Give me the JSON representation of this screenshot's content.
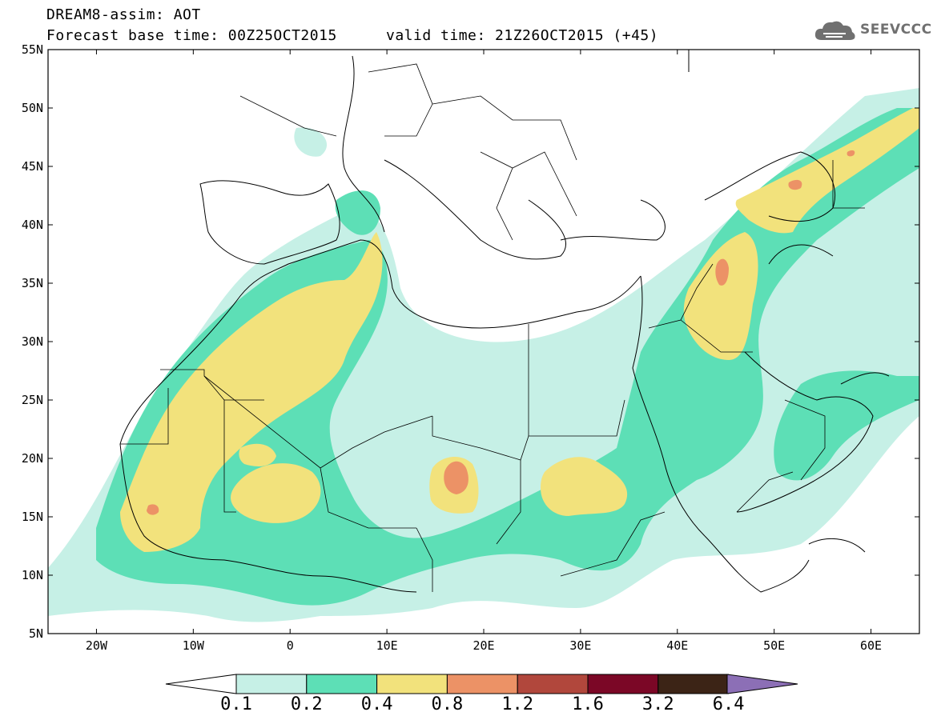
{
  "header": {
    "title": "DREAM8-assim: AOT",
    "base_time": "Forecast base time: 00Z25OCT2015",
    "valid_time": "valid time: 21Z26OCT2015 (+45)"
  },
  "logo": {
    "text": "SEEVCCC",
    "icon": "cloud-icon"
  },
  "map": {
    "lat_labels": [
      "55N",
      "50N",
      "45N",
      "40N",
      "35N",
      "30N",
      "25N",
      "20N",
      "15N",
      "10N",
      "5N"
    ],
    "lon_labels": [
      "20W",
      "10W",
      "0",
      "10E",
      "20E",
      "30E",
      "40E",
      "50E",
      "60E"
    ],
    "lat_range": [
      5,
      55
    ],
    "lon_range": [
      -25,
      65
    ]
  },
  "colorbar": {
    "labels": [
      "0.1",
      "0.2",
      "0.4",
      "0.8",
      "1.2",
      "1.6",
      "3.2",
      "6.4"
    ],
    "colors": [
      "#c6f0e6",
      "#5ddfb6",
      "#f2e27c",
      "#ec9266",
      "#b1473c",
      "#7b0726",
      "#3c2416",
      "#8c6fb6"
    ]
  }
}
